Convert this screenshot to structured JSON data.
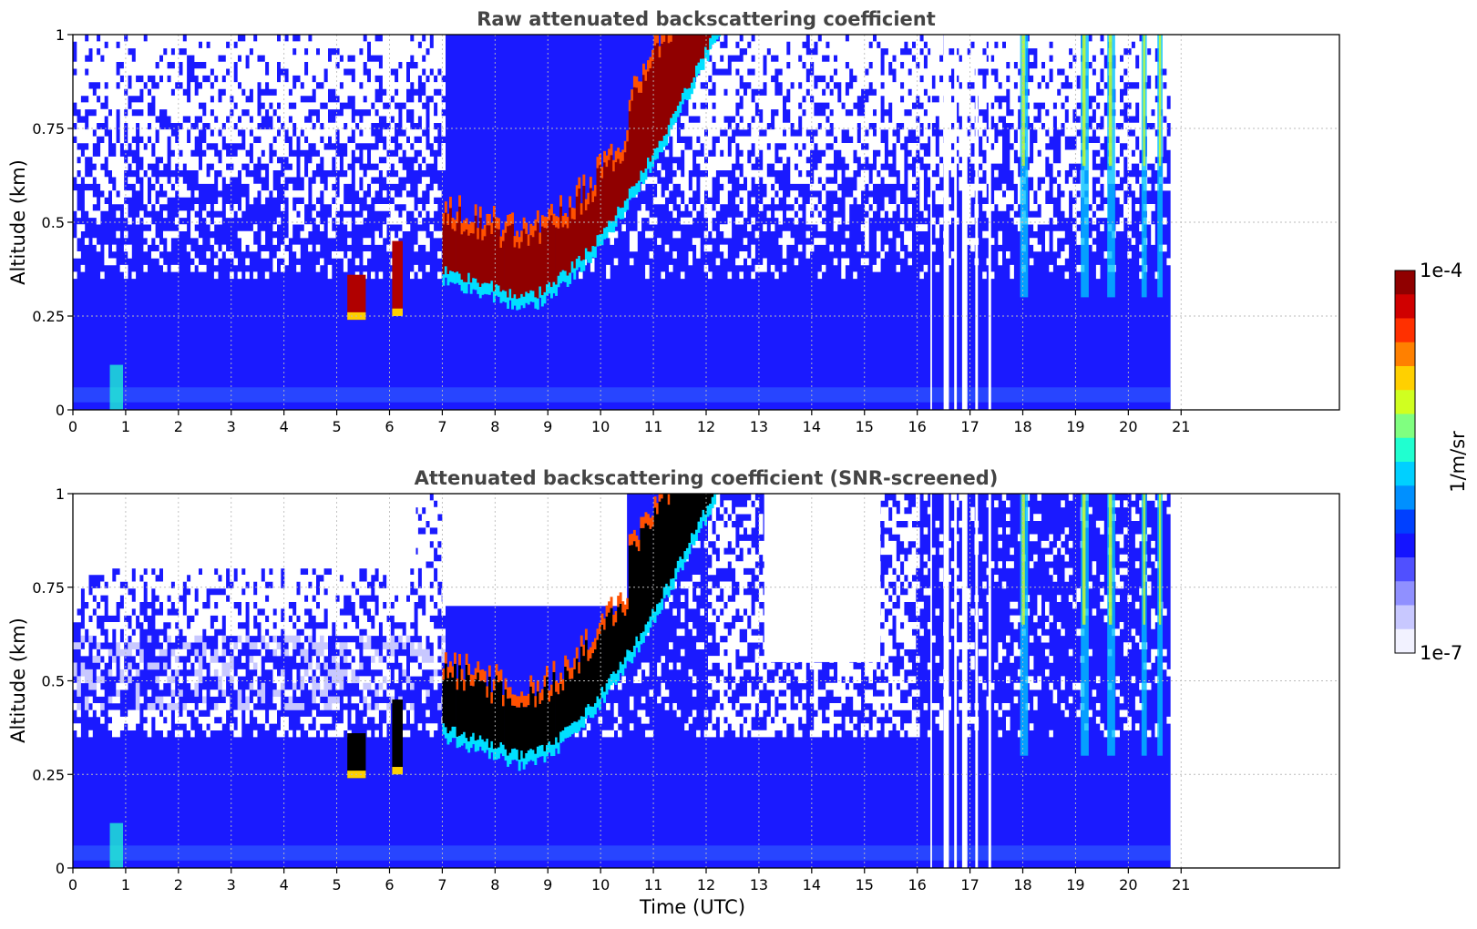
{
  "chart_data": [
    {
      "type": "heatmap",
      "title": "Raw attenuated backscattering coefficient",
      "xlabel": "",
      "ylabel": "Altitude (km)",
      "xlim": [
        0,
        24
      ],
      "ylim": [
        0,
        1
      ],
      "x_ticks": [
        "0",
        "1",
        "2",
        "3",
        "4",
        "5",
        "6",
        "7",
        "8",
        "9",
        "10",
        "11",
        "12",
        "13",
        "14",
        "15",
        "16",
        "17",
        "18",
        "19",
        "20",
        "21"
      ],
      "y_ticks": [
        "0",
        "0.25",
        "0.5",
        "0.75",
        "1"
      ],
      "data_end_time": 20.8,
      "grid": true,
      "features": {
        "boundary_layer_top_km": 0.35,
        "cloud_layer": {
          "start_utc": 7.0,
          "end_utc": 13.0,
          "base_km_start": 0.3,
          "base_km_end": 1.0
        }
      }
    },
    {
      "type": "heatmap",
      "title": "Attenuated backscattering coefficient (SNR-screened)",
      "xlabel": "Time (UTC)",
      "ylabel": "Altitude (km)",
      "xlim": [
        0,
        24
      ],
      "ylim": [
        0,
        1
      ],
      "x_ticks": [
        "0",
        "1",
        "2",
        "3",
        "4",
        "5",
        "6",
        "7",
        "8",
        "9",
        "10",
        "11",
        "12",
        "13",
        "14",
        "15",
        "16",
        "17",
        "18",
        "19",
        "20",
        "21"
      ],
      "y_ticks": [
        "0",
        "0.25",
        "0.5",
        "0.75",
        "1"
      ],
      "data_end_time": 20.8,
      "grid": true,
      "features": {
        "boundary_layer_top_km": 0.35,
        "cloud_layer": {
          "start_utc": 7.0,
          "end_utc": 13.0,
          "base_km_start": 0.3,
          "base_km_end": 1.0
        }
      }
    }
  ],
  "colorbar": {
    "label": "1/m/sr",
    "max_label": "1e-4",
    "min_label": "1e-7",
    "colors": [
      "#f2f2ff",
      "#c8c8ff",
      "#9090ff",
      "#5050ff",
      "#1414ff",
      "#0040ff",
      "#0090ff",
      "#00d0ff",
      "#20ffd0",
      "#80ff80",
      "#d0ff20",
      "#ffd000",
      "#ff8000",
      "#ff3000",
      "#d00000",
      "#900000"
    ]
  }
}
